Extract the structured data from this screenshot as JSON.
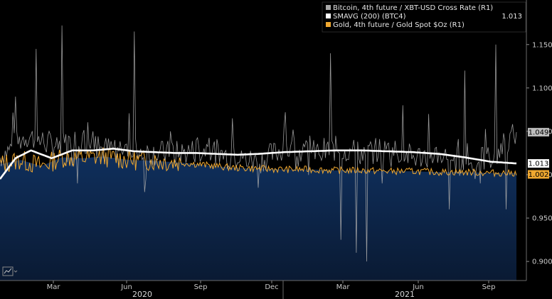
{
  "chart_data": {
    "type": "line",
    "x_axis": {
      "month_ticks": [
        "Mar",
        "Jun",
        "Sep",
        "Dec",
        "Mar",
        "Jun",
        "Sep"
      ],
      "years": [
        "2020",
        "2021"
      ]
    },
    "y_axis": {
      "side": "right",
      "ticks": [
        0.9,
        0.95,
        1.0,
        1.05,
        1.1,
        1.15
      ],
      "tick_labels": [
        "0.900",
        "0.950",
        "1.000",
        "1.050",
        "1.100",
        "1.150"
      ],
      "ylim": [
        0.878,
        1.185
      ]
    },
    "legend": {
      "placement": "top-right",
      "entries": [
        {
          "label": "Bitcoin, 4th future / XBT-USD Cross Rate (R1)",
          "color": "#a8a8a8",
          "value": ""
        },
        {
          "label": "SMAVG (200) (BTC4)",
          "color": "#ffffff",
          "value": "1.013"
        },
        {
          "label": "Gold, 4th future / Gold Spot $Oz (R1)",
          "color": "#f0a830",
          "value": ""
        }
      ]
    },
    "last_value_tags": [
      {
        "series": "Bitcoin",
        "label": "1.049",
        "value": 1.049,
        "bg": "#bdbdbd",
        "fg": "#000000"
      },
      {
        "series": "SMAVG",
        "label": "1.013",
        "value": 1.013,
        "bg": "#ffffff",
        "fg": "#000000"
      },
      {
        "series": "Gold",
        "label": "1.002",
        "value": 1.002,
        "bg": "#f0a830",
        "fg": "#000000"
      }
    ],
    "series": [
      {
        "name": "SMAVG (200) (BTC4)",
        "color": "#ffffff",
        "x": [
          0,
          0.03,
          0.06,
          0.1,
          0.14,
          0.18,
          0.22,
          0.26,
          0.3,
          0.34,
          0.38,
          0.42,
          0.46,
          0.5,
          0.55,
          0.6,
          0.65,
          0.7,
          0.75,
          0.8,
          0.85,
          0.9,
          0.95,
          1.0
        ],
        "values": [
          0.995,
          1.019,
          1.028,
          1.019,
          1.028,
          1.028,
          1.03,
          1.027,
          1.026,
          1.025,
          1.025,
          1.024,
          1.023,
          1.024,
          1.026,
          1.027,
          1.028,
          1.028,
          1.027,
          1.026,
          1.024,
          1.02,
          1.015,
          1.013
        ]
      },
      {
        "name": "Gold, 4th future / Gold Spot $Oz (R1)",
        "color": "#f0a830",
        "x": [
          0,
          0.04,
          0.08,
          0.12,
          0.16,
          0.2,
          0.25,
          0.3,
          0.35,
          0.4,
          0.45,
          0.5,
          0.55,
          0.6,
          0.65,
          0.7,
          0.75,
          0.8,
          0.85,
          0.9,
          0.95,
          1.0
        ],
        "values": [
          1.012,
          1.017,
          1.01,
          1.02,
          1.019,
          1.021,
          1.017,
          1.016,
          1.014,
          1.011,
          1.008,
          1.007,
          1.006,
          1.006,
          1.005,
          1.005,
          1.004,
          1.004,
          1.003,
          1.003,
          1.002,
          1.002
        ]
      },
      {
        "name": "Bitcoin, 4th future / XBT-USD Cross Rate (R1)",
        "color": "#a8a8a8",
        "x": [
          0,
          0.05,
          0.1,
          0.15,
          0.2,
          0.25,
          0.3,
          0.35,
          0.4,
          0.45,
          0.5,
          0.55,
          0.6,
          0.65,
          0.7,
          0.75,
          0.8,
          0.85,
          0.9,
          0.95,
          1.0
        ],
        "values": [
          1.02,
          1.045,
          1.035,
          1.04,
          1.03,
          1.03,
          1.025,
          1.025,
          1.03,
          1.02,
          1.015,
          1.03,
          1.025,
          1.03,
          1.025,
          1.03,
          1.02,
          1.025,
          1.01,
          1.02,
          1.049
        ],
        "spikes": [
          {
            "x": 0.03,
            "value": 1.09
          },
          {
            "x": 0.07,
            "value": 1.145
          },
          {
            "x": 0.12,
            "value": 1.172
          },
          {
            "x": 0.15,
            "value": 0.99
          },
          {
            "x": 0.18,
            "value": 1.05
          },
          {
            "x": 0.22,
            "value": 1.03
          },
          {
            "x": 0.26,
            "value": 1.165
          },
          {
            "x": 0.28,
            "value": 0.98
          },
          {
            "x": 0.33,
            "value": 1.05
          },
          {
            "x": 0.38,
            "value": 1.04
          },
          {
            "x": 0.45,
            "value": 1.065
          },
          {
            "x": 0.5,
            "value": 0.985
          },
          {
            "x": 0.55,
            "value": 1.055
          },
          {
            "x": 0.6,
            "value": 1.045
          },
          {
            "x": 0.64,
            "value": 1.14
          },
          {
            "x": 0.66,
            "value": 0.925
          },
          {
            "x": 0.69,
            "value": 0.91
          },
          {
            "x": 0.71,
            "value": 0.9
          },
          {
            "x": 0.74,
            "value": 0.99
          },
          {
            "x": 0.78,
            "value": 1.08
          },
          {
            "x": 0.83,
            "value": 1.07
          },
          {
            "x": 0.87,
            "value": 0.96
          },
          {
            "x": 0.9,
            "value": 1.12
          },
          {
            "x": 0.93,
            "value": 0.99
          },
          {
            "x": 0.96,
            "value": 1.15
          },
          {
            "x": 0.98,
            "value": 0.96
          },
          {
            "x": 1.0,
            "value": 1.049
          }
        ]
      }
    ]
  }
}
